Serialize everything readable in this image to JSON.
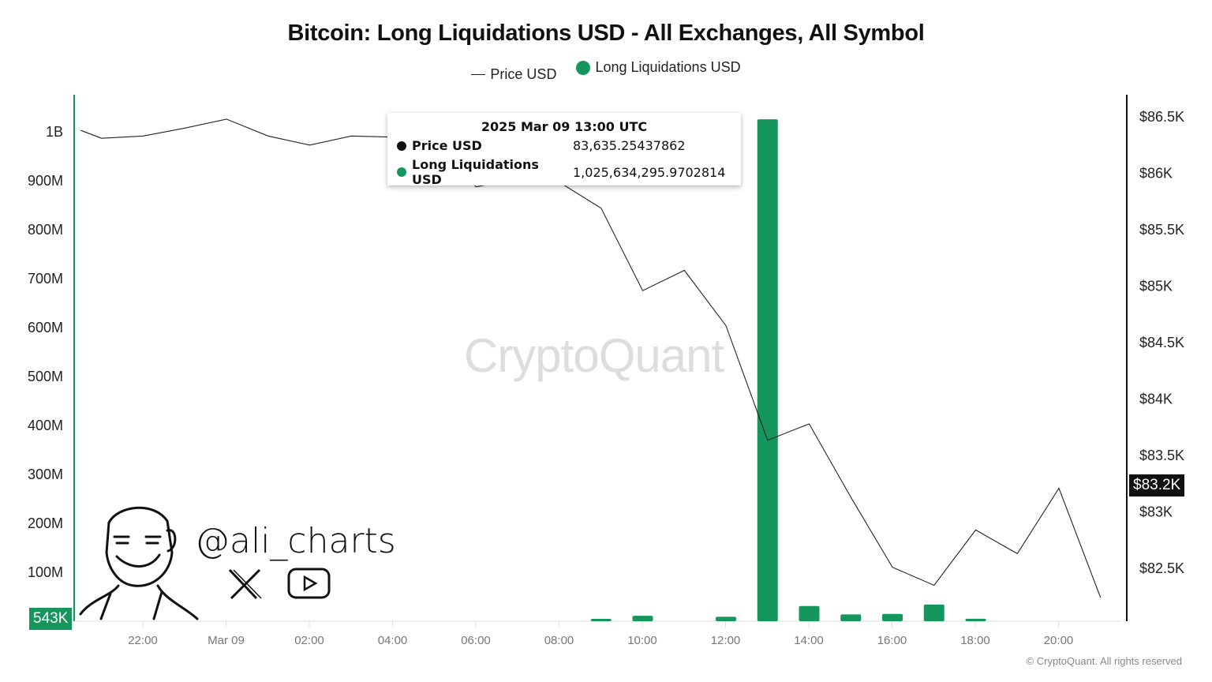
{
  "chart_data": {
    "type": "bar+line",
    "title": "Bitcoin: Long Liquidations USD - All Exchanges, All Symbol",
    "legend": [
      "Price USD",
      "Long Liquidations USD"
    ],
    "legend_placement": "top-center",
    "colors": {
      "price": "#222222",
      "liquidations": "#15965c"
    },
    "x_ticks": [
      "22:00",
      "Mar 09",
      "02:00",
      "04:00",
      "06:00",
      "08:00",
      "10:00",
      "12:00",
      "14:00",
      "16:00",
      "18:00",
      "20:00"
    ],
    "y_left_ticks": [
      "100M",
      "200M",
      "300M",
      "400M",
      "500M",
      "600M",
      "700M",
      "800M",
      "900M",
      "1B"
    ],
    "y_right_ticks": [
      "$82.5K",
      "$83K",
      "$83.5K",
      "$84K",
      "$84.5K",
      "$85K",
      "$85.5K",
      "$86K",
      "$86.5K"
    ],
    "y_left_range": [
      0,
      1000000000
    ],
    "y_right_range": [
      82500,
      86500
    ],
    "grid": false,
    "series": [
      {
        "name": "Price USD",
        "type": "line",
        "axis": "right",
        "x": [
          "03-08 20:30",
          "03-08 21:00",
          "03-08 22:00",
          "03-08 23:00",
          "03-09 00:00",
          "03-09 01:00",
          "03-09 02:00",
          "03-09 03:00",
          "03-09 04:00",
          "03-09 05:00",
          "03-09 06:00",
          "03-09 07:00",
          "03-09 08:00",
          "03-09 09:00",
          "03-09 10:00",
          "03-09 11:00",
          "03-09 12:00",
          "03-09 13:00",
          "03-09 14:00",
          "03-09 15:00",
          "03-09 16:00",
          "03-09 17:00",
          "03-09 18:00",
          "03-09 19:00",
          "03-09 20:00",
          "03-09 21:00"
        ],
        "values": [
          86380,
          86310,
          86330,
          86400,
          86480,
          86330,
          86250,
          86330,
          86320,
          86200,
          85880,
          85950,
          85920,
          85690,
          84960,
          85140,
          84650,
          83635.25,
          83780,
          83130,
          82510,
          82350,
          82840,
          82630,
          83210,
          82240
        ]
      },
      {
        "name": "Long Liquidations USD",
        "type": "bar",
        "axis": "left",
        "x": [
          "03-09 09:00",
          "03-09 10:00",
          "03-09 12:00",
          "03-09 13:00",
          "03-09 14:00",
          "03-09 15:00",
          "03-09 16:00",
          "03-09 17:00",
          "03-09 18:00"
        ],
        "values": [
          4800000,
          11000000,
          9000000,
          1025634295.97,
          31000000,
          14000000,
          15000000,
          34000000,
          5000000
        ]
      }
    ],
    "current_price_label": "$83.2K",
    "current_liq_label": "543K"
  },
  "tooltip": {
    "time": "2025 Mar 09 13:00 UTC",
    "price_label": "Price USD",
    "price_value": "83,635.25437862",
    "liq_label": "Long Liquidations USD",
    "liq_value": "1,025,634,295.9702814"
  },
  "watermark": "CryptoQuant",
  "branding": {
    "handle": "@ali_charts",
    "icons": [
      "x-logo-icon",
      "youtube-icon"
    ]
  },
  "footer": "© CryptoQuant. All rights reserved"
}
